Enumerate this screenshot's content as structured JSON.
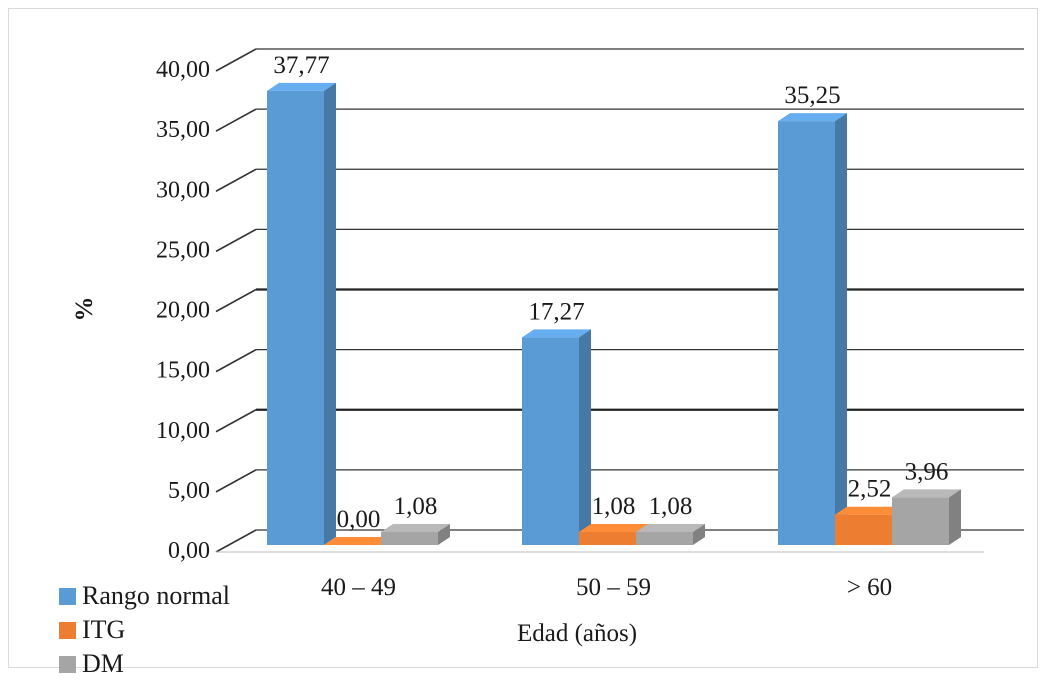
{
  "chart_data": {
    "type": "bar",
    "categories": [
      "40 – 49",
      "50 – 59",
      "> 60"
    ],
    "series": [
      {
        "name": "Rango normal",
        "values": [
          37.77,
          17.27,
          35.25
        ],
        "labels": [
          "37,77",
          "17,27",
          "35,25"
        ],
        "color": "#5b9bd5"
      },
      {
        "name": "ITG",
        "values": [
          0.0,
          1.08,
          2.52
        ],
        "labels": [
          "0,00",
          "1,08",
          "2,52"
        ],
        "color": "#ed7d31"
      },
      {
        "name": "DM",
        "values": [
          1.08,
          1.08,
          3.96
        ],
        "labels": [
          "1,08",
          "1,08",
          "3,96"
        ],
        "color": "#a5a5a5"
      }
    ],
    "ylabel": "%",
    "xlabel": "Edad (años)",
    "ylim": [
      0,
      40
    ],
    "yticks": [
      0,
      5,
      10,
      15,
      20,
      25,
      30,
      35,
      40
    ],
    "yticklabels": [
      "0,00",
      "5,00",
      "10,00",
      "15,00",
      "20,00",
      "25,00",
      "30,00",
      "35,00",
      "40,00"
    ],
    "grid": true,
    "legend_position": "bottom-left"
  }
}
